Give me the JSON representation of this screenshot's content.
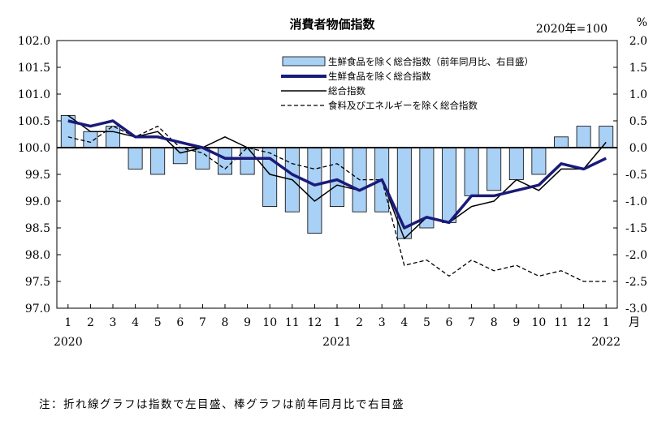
{
  "chart_data": {
    "type": "bar+line",
    "title": "消費者物価指数",
    "base_label": "2020年=100",
    "right_unit": "%",
    "month_unit": "月",
    "categories": [
      "1",
      "2",
      "3",
      "4",
      "5",
      "6",
      "7",
      "8",
      "9",
      "10",
      "11",
      "12",
      "1",
      "2",
      "3",
      "4",
      "5",
      "6",
      "7",
      "8",
      "9",
      "10",
      "11",
      "12",
      "1"
    ],
    "years": [
      {
        "label": "2020",
        "index": 0
      },
      {
        "label": "2021",
        "index": 12
      },
      {
        "label": "2022",
        "index": 24
      }
    ],
    "left_axis": {
      "min": 97.0,
      "max": 102.0,
      "step": 0.5,
      "ticks": [
        "97.0",
        "97.5",
        "98.0",
        "98.5",
        "99.0",
        "99.5",
        "100.0",
        "100.5",
        "101.0",
        "101.5",
        "102.0"
      ]
    },
    "right_axis": {
      "min": -3.0,
      "max": 2.0,
      "step": 0.5,
      "ticks": [
        "-3.0",
        "-2.5",
        "-2.0",
        "-1.5",
        "-1.0",
        "-0.5",
        "0.0",
        "0.5",
        "1.0",
        "1.5",
        "2.0"
      ]
    },
    "bars": {
      "name": "生鮮食品を除く総合指数（前年同月比、右目盛）",
      "axis": "right",
      "color": "#a9d0f5",
      "values": [
        0.6,
        0.3,
        0.4,
        -0.4,
        -0.5,
        -0.3,
        -0.4,
        -0.5,
        -0.5,
        -1.1,
        -1.2,
        -1.6,
        -1.1,
        -1.2,
        -1.2,
        -1.7,
        -1.5,
        -1.4,
        -0.9,
        -0.8,
        -0.6,
        -0.5,
        0.2,
        0.4,
        0.4
      ]
    },
    "series": [
      {
        "name": "生鮮食品を除く総合指数",
        "axis": "left",
        "style": "thick",
        "color": "#1a1a7a",
        "values": [
          100.5,
          100.4,
          100.5,
          100.2,
          100.2,
          100.1,
          100.0,
          99.8,
          99.8,
          99.8,
          99.5,
          99.3,
          99.4,
          99.2,
          99.4,
          98.5,
          98.7,
          98.6,
          99.1,
          99.1,
          99.2,
          99.3,
          99.7,
          99.6,
          99.8
        ]
      },
      {
        "name": "総合指数",
        "axis": "left",
        "style": "thin",
        "color": "#000000",
        "values": [
          100.6,
          100.3,
          100.3,
          100.2,
          100.3,
          99.9,
          100.0,
          100.2,
          100.0,
          99.5,
          99.4,
          99.0,
          99.3,
          99.2,
          99.4,
          98.3,
          98.7,
          98.6,
          98.9,
          99.0,
          99.4,
          99.2,
          99.6,
          99.6,
          100.1
        ]
      },
      {
        "name": "食料及びエネルギーを除く総合指数",
        "axis": "left",
        "style": "dashed",
        "color": "#000000",
        "values": [
          100.2,
          100.1,
          100.4,
          100.2,
          100.4,
          100.0,
          99.9,
          99.6,
          100.0,
          99.9,
          99.7,
          99.6,
          99.7,
          99.4,
          99.4,
          97.8,
          97.9,
          97.6,
          97.9,
          97.7,
          97.8,
          97.6,
          97.7,
          97.5,
          97.5
        ]
      }
    ]
  },
  "footnote": "注：折れ線グラフは指数で左目盛、棒グラフは前年同月比で右目盛"
}
